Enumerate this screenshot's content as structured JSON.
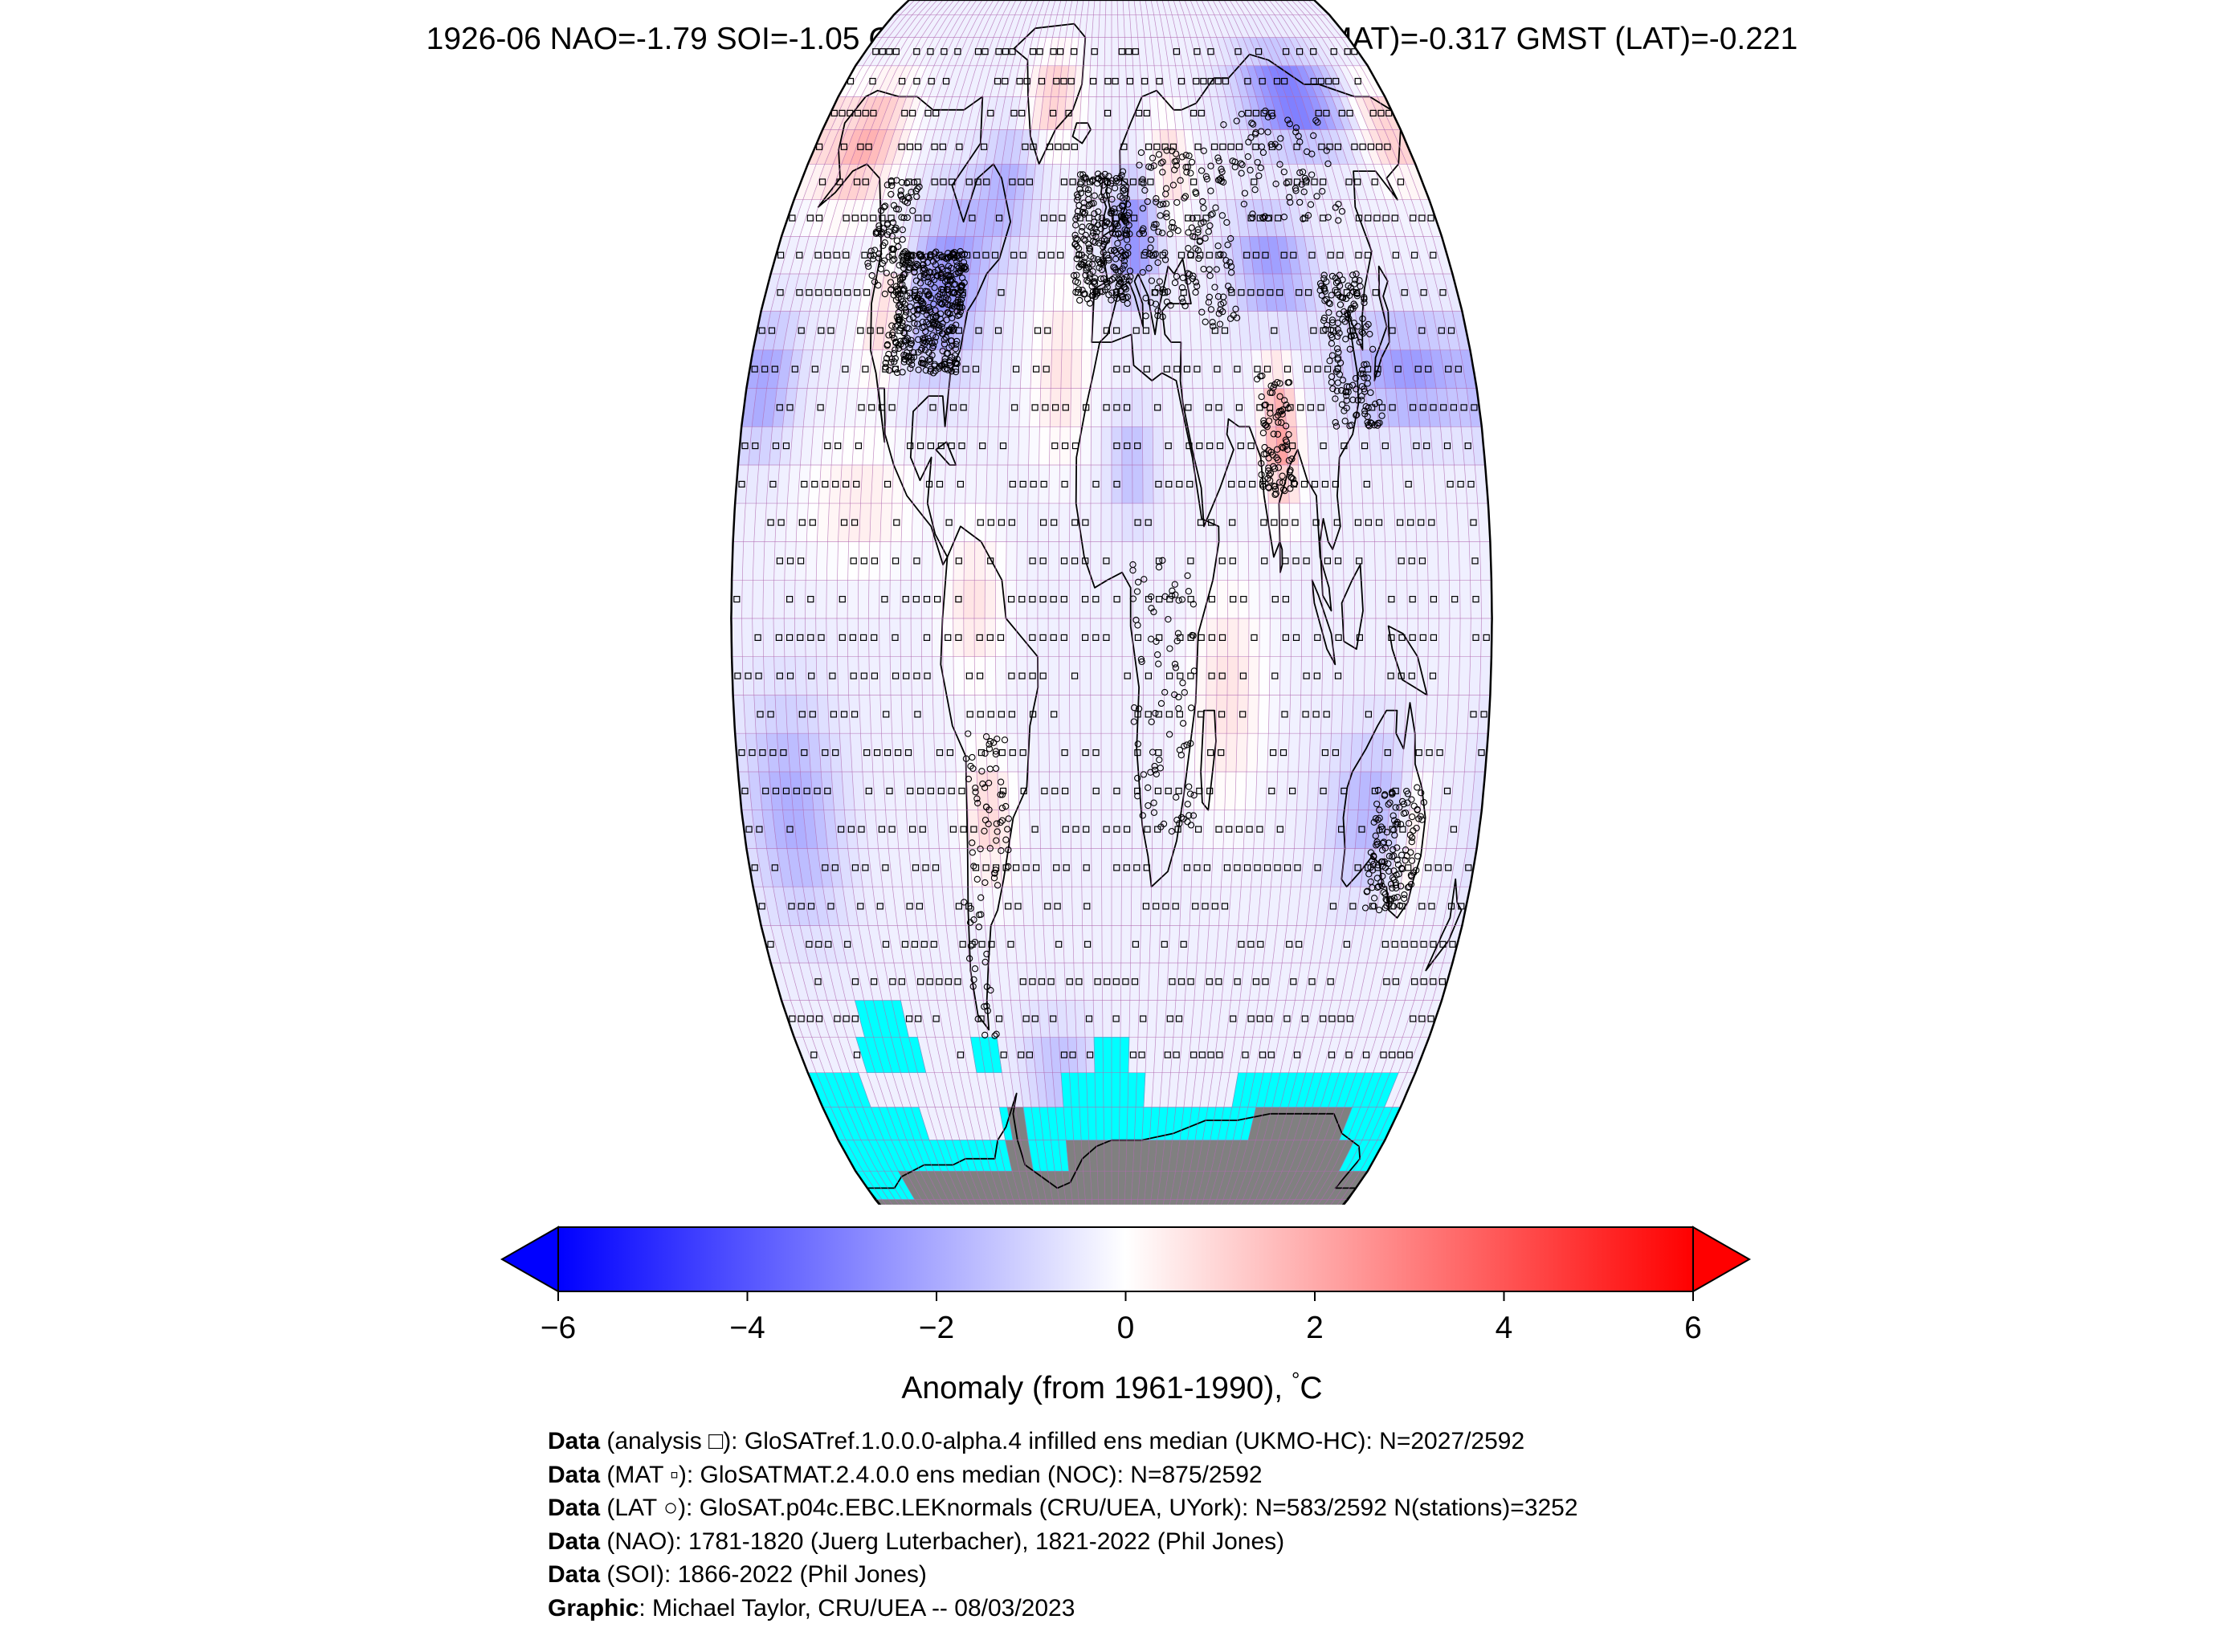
{
  "title": "1926-06 NAO=-1.79 SOI=-1.05 GMST (analysis)=-0.287 GMST (MAT)=-0.317 GMST (LAT)=-0.221",
  "colorbar": {
    "label": "Anomaly (from 1961-1990), ",
    "unit": "C",
    "degree_symbol": "°",
    "ticks": [
      "−6",
      "−4",
      "−2",
      "0",
      "2",
      "4",
      "6"
    ],
    "min": -6,
    "max": 6,
    "extend": "both",
    "colors": {
      "low": "#0000ff",
      "mid": "#ffffff",
      "high": "#ff0000"
    }
  },
  "map": {
    "projection": "Robinson",
    "grid": "5x5 degree cells",
    "ocean_colors": {
      "missing_sea_ice": "#00ffff",
      "antarctica": "#808080",
      "grid_line": "#b06ab0"
    },
    "markers": {
      "analysis": "square",
      "MAT": "small square",
      "LAT": "circle"
    }
  },
  "credits": [
    {
      "bold": "Data",
      "text": " (analysis □): GloSATref.1.0.0.0-alpha.4 infilled ens median (UKMO-HC): N=2027/2592"
    },
    {
      "bold": "Data",
      "text": " (MAT ▫): GloSATMAT.2.4.0.0 ens median (NOC): N=875/2592"
    },
    {
      "bold": "Data",
      "text": " (LAT ○): GloSAT.p04c.EBC.LEKnormals (CRU/UEA, UYork): N=583/2592 N(stations)=3252"
    },
    {
      "bold": "Data",
      "text": " (NAO): 1781-1820 (Juerg Luterbacher), 1821-2022 (Phil Jones)"
    },
    {
      "bold": "Data",
      "text": " (SOI): 1866-2022 (Phil Jones)"
    },
    {
      "bold": "Graphic",
      "text": ": Michael Taylor, CRU/UEA -- 08/03/2023"
    }
  ]
}
